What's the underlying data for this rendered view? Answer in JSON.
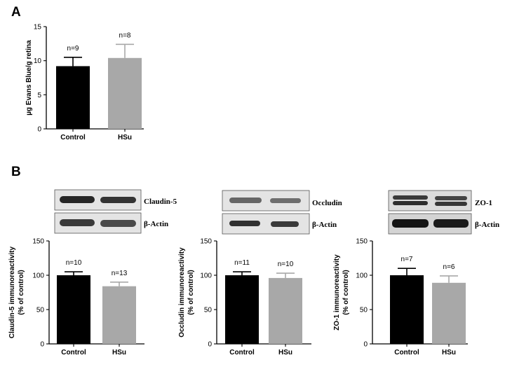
{
  "panel_labels": {
    "a": "A",
    "b": "B"
  },
  "colors": {
    "control": "#000000",
    "hsu": "#a8a8a8",
    "axis": "#000000"
  },
  "chart_data": [
    {
      "type": "bar",
      "panel": "A",
      "categories": [
        "Control",
        "HSu"
      ],
      "values": [
        9.2,
        10.4
      ],
      "errors": [
        1.3,
        2.0
      ],
      "n_labels": [
        "n=9",
        "n=8"
      ],
      "ylabel": "µg Evans Blue/g retina",
      "ylabel_lines": [
        "µg Evans Blue/g retina"
      ],
      "ylim": [
        0,
        15
      ],
      "yticks": [
        0,
        5,
        10,
        15
      ],
      "colors": [
        "#000000",
        "#a8a8a8"
      ]
    },
    {
      "type": "bar",
      "panel": "B",
      "blot_labels": [
        "Claudin-5",
        "β-Actin"
      ],
      "categories": [
        "Control",
        "HSu"
      ],
      "values": [
        100,
        84
      ],
      "errors": [
        5,
        6
      ],
      "n_labels": [
        "n=10",
        "n=13"
      ],
      "ylabel_lines": [
        "Claudin-5 immunoreactivity",
        "(% of control)"
      ],
      "ylim": [
        0,
        150
      ],
      "yticks": [
        0,
        50,
        100,
        150
      ],
      "colors": [
        "#000000",
        "#a8a8a8"
      ]
    },
    {
      "type": "bar",
      "panel": "B",
      "blot_labels": [
        "Occludin",
        "β-Actin"
      ],
      "categories": [
        "Control",
        "HSu"
      ],
      "values": [
        100,
        96
      ],
      "errors": [
        5,
        7
      ],
      "n_labels": [
        "n=11",
        "n=10"
      ],
      "ylabel_lines": [
        "Occludin immunoreactivity",
        "(% of control)"
      ],
      "ylim": [
        0,
        150
      ],
      "yticks": [
        0,
        50,
        100,
        150
      ],
      "colors": [
        "#000000",
        "#a8a8a8"
      ]
    },
    {
      "type": "bar",
      "panel": "B",
      "blot_labels": [
        "ZO-1",
        "β-Actin"
      ],
      "categories": [
        "Control",
        "HSu"
      ],
      "values": [
        100,
        89
      ],
      "errors": [
        10,
        10
      ],
      "n_labels": [
        "n=7",
        "n=6"
      ],
      "ylabel_lines": [
        "ZO-1 immunoreactivity",
        "(% of control)"
      ],
      "ylim": [
        0,
        150
      ],
      "yticks": [
        0,
        50,
        100,
        150
      ],
      "colors": [
        "#000000",
        "#a8a8a8"
      ]
    }
  ]
}
